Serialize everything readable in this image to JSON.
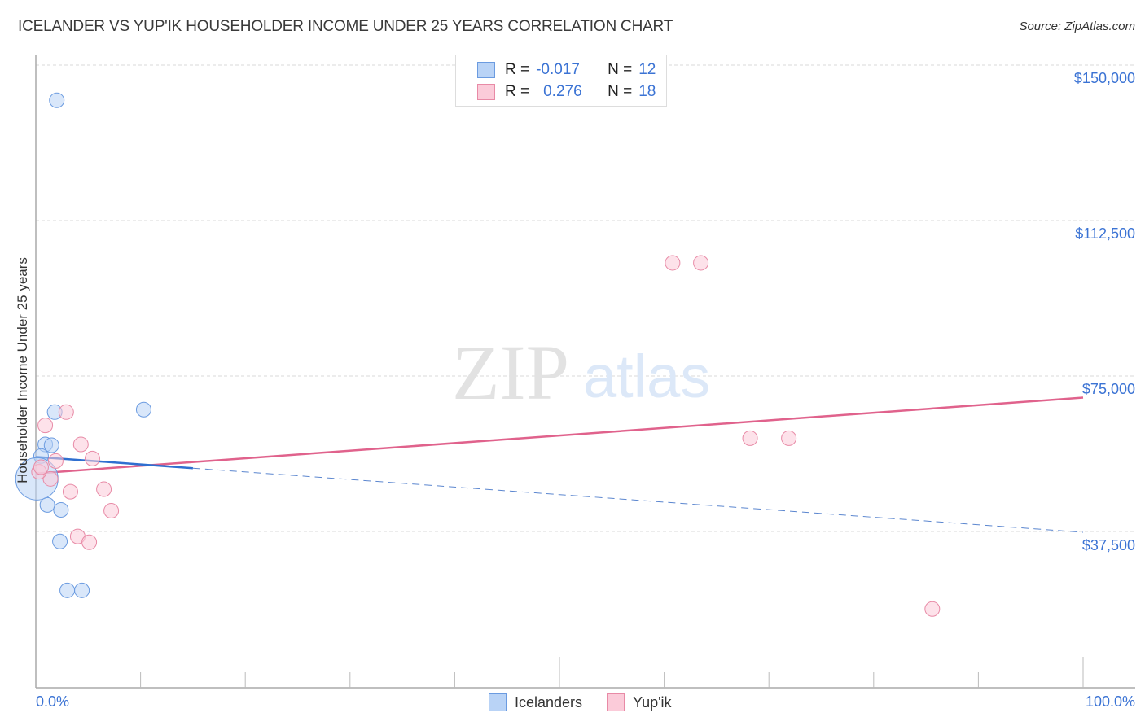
{
  "header": {
    "title": "ICELANDER VS YUP'IK HOUSEHOLDER INCOME UNDER 25 YEARS CORRELATION CHART",
    "source": "Source: ZipAtlas.com"
  },
  "watermark": {
    "zip": "ZIP",
    "atlas": "atlas"
  },
  "legend_top": {
    "rows": [
      {
        "r_label": "R =",
        "r_value": "-0.017",
        "n_label": "N =",
        "n_value": "12",
        "color": "#a9c7f2",
        "border": "#6b9be0"
      },
      {
        "r_label": "R =",
        "r_value": "0.276",
        "n_label": "N =",
        "n_value": "18",
        "color": "#f9c3d3",
        "border": "#e88aa6"
      }
    ]
  },
  "legend_bottom": {
    "items": [
      {
        "label": "Icelanders",
        "color": "#b9d3f6",
        "border": "#6b9be0"
      },
      {
        "label": "Yup'ik",
        "color": "#fbcbd9",
        "border": "#e88aa6"
      }
    ]
  },
  "axes": {
    "ylabel": "Householder Income Under 25 years",
    "yticks": [
      "$150,000",
      "$112,500",
      "$75,000",
      "$37,500"
    ],
    "xticks": [
      "0.0%",
      "100.0%"
    ]
  },
  "chart_data": {
    "type": "scatter",
    "title": "ICELANDER VS YUP'IK HOUSEHOLDER INCOME UNDER 25 YEARS CORRELATION CHART",
    "xlabel": "",
    "ylabel": "Householder Income Under 25 years",
    "xlim": [
      0,
      100
    ],
    "ylim": [
      0,
      150000
    ],
    "ytick_values": [
      37500,
      75000,
      112500,
      150000
    ],
    "ytick_labels": [
      "$37,500",
      "$75,000",
      "$112,500",
      "$150,000"
    ],
    "xtick_labels": [
      "0.0%",
      "100.0%"
    ],
    "grid": true,
    "legend_position": "top-center",
    "series": [
      {
        "name": "Icelanders",
        "color": "#6b9be0",
        "fill": "#b9d3f6",
        "r": -0.017,
        "n": 12,
        "points": [
          {
            "x": 2.0,
            "y": 141500
          },
          {
            "x": 1.8,
            "y": 66300
          },
          {
            "x": 10.3,
            "y": 66900
          },
          {
            "x": 0.9,
            "y": 58500
          },
          {
            "x": 1.5,
            "y": 58300
          },
          {
            "x": 0.5,
            "y": 55700
          },
          {
            "x": 0.1,
            "y": 50200,
            "size": "large"
          },
          {
            "x": 1.1,
            "y": 43900
          },
          {
            "x": 2.4,
            "y": 42700
          },
          {
            "x": 2.3,
            "y": 35100
          },
          {
            "x": 3.0,
            "y": 23300
          },
          {
            "x": 4.4,
            "y": 23300
          }
        ],
        "trend": {
          "x0": 0,
          "y0": 55500,
          "x1": 100,
          "y1": 37300,
          "solid_until_x": 15
        }
      },
      {
        "name": "Yup'ik",
        "color": "#e88aa6",
        "fill": "#fbcbd9",
        "r": 0.276,
        "n": 18,
        "points": [
          {
            "x": 0.9,
            "y": 63100
          },
          {
            "x": 2.9,
            "y": 66300
          },
          {
            "x": 4.3,
            "y": 58500
          },
          {
            "x": 5.4,
            "y": 55100
          },
          {
            "x": 1.9,
            "y": 54500
          },
          {
            "x": 1.4,
            "y": 50200
          },
          {
            "x": 3.3,
            "y": 47100
          },
          {
            "x": 6.5,
            "y": 47700
          },
          {
            "x": 7.2,
            "y": 42500
          },
          {
            "x": 4.0,
            "y": 36300
          },
          {
            "x": 5.1,
            "y": 34900
          },
          {
            "x": 0.3,
            "y": 51900
          },
          {
            "x": 60.8,
            "y": 102300
          },
          {
            "x": 63.5,
            "y": 102300
          },
          {
            "x": 68.2,
            "y": 60000
          },
          {
            "x": 71.9,
            "y": 60000
          },
          {
            "x": 85.6,
            "y": 18800
          },
          {
            "x": 0.5,
            "y": 53000
          }
        ],
        "trend": {
          "x0": 0,
          "y0": 51500,
          "x1": 100,
          "y1": 69800
        }
      }
    ]
  }
}
